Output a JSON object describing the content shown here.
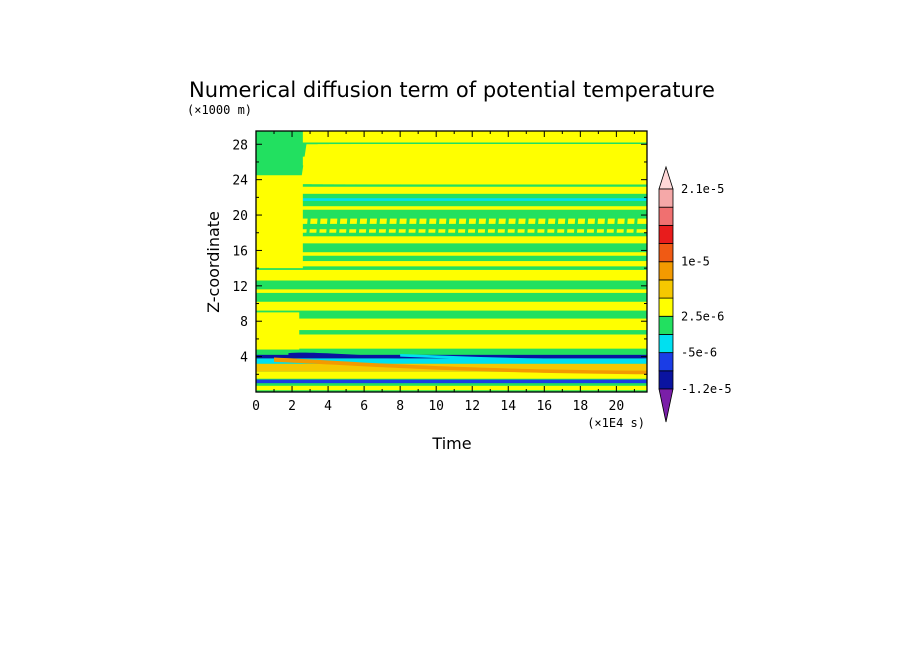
{
  "chart_data": {
    "type": "heatmap",
    "title": "Numerical diffusion term of potential temperature",
    "xlabel": "Time",
    "ylabel": "Z-coordinate",
    "x_units": "(×1E4 s)",
    "y_units": "(×1000 m)",
    "xlim": [
      0,
      21.7
    ],
    "ylim": [
      0,
      29.5
    ],
    "x_ticks": [
      0,
      2,
      4,
      6,
      8,
      10,
      12,
      14,
      16,
      18,
      20
    ],
    "y_ticks": [
      4,
      8,
      12,
      16,
      20,
      24,
      28
    ],
    "colorbar": {
      "labels": [
        {
          "text": "2.1e-5",
          "level": 11
        },
        {
          "text": "1e-5",
          "level": 7
        },
        {
          "text": "2.5e-6",
          "level": 4
        },
        {
          "text": "-5e-6",
          "level": 2
        },
        {
          "text": "-1.2e-5",
          "level": 0
        }
      ],
      "colors": [
        "#7a1fa8",
        "#0a13a0",
        "#1a3de6",
        "#00e0f0",
        "#22e060",
        "#ffff00",
        "#f5c800",
        "#f39a00",
        "#f05a14",
        "#e81c1c",
        "#f07070",
        "#f5a8a8",
        "#ffd8d8"
      ],
      "extend": "both"
    },
    "field_classes": {
      "background": "#22e060",
      "positive_band": "#ffff00",
      "strong_positive": "#f39a00",
      "negative_layer": "#0a13a0",
      "cyan_layer": "#00e0f0"
    },
    "bands": [
      {
        "z0": 0.2,
        "z1": 0.7,
        "color": "#ffff00"
      },
      {
        "z0": 1.0,
        "z1": 1.4,
        "color": "#1a3de6"
      },
      {
        "z0": 1.5,
        "z1": 2.3,
        "color": "#ffff00"
      },
      {
        "z0": 2.3,
        "z1": 3.2,
        "color": "#f5c800"
      },
      {
        "z0": 3.2,
        "z1": 3.8,
        "color": "#00e0f0"
      },
      {
        "z0": 3.8,
        "z1": 4.2,
        "color": "#0a13a0"
      },
      {
        "z0": 4.9,
        "z1": 6.5,
        "color": "#ffff00"
      },
      {
        "z0": 7.0,
        "z1": 8.3,
        "color": "#ffff00"
      },
      {
        "z0": 9.2,
        "z1": 10.2,
        "color": "#ffff00"
      },
      {
        "z0": 11.2,
        "z1": 11.6,
        "color": "#ffff00"
      },
      {
        "z0": 12.6,
        "z1": 13.8,
        "color": "#ffff00"
      },
      {
        "z0": 14.2,
        "z1": 14.8,
        "color": "#ffff00"
      },
      {
        "z0": 15.4,
        "z1": 15.8,
        "color": "#ffff00"
      },
      {
        "z0": 16.8,
        "z1": 17.6,
        "color": "#ffff00"
      },
      {
        "z0": 18.0,
        "z1": 18.4,
        "color": "#ffff00"
      },
      {
        "z0": 19.0,
        "z1": 19.6,
        "color": "#ffff00"
      },
      {
        "z0": 20.6,
        "z1": 21.0,
        "color": "#ffff00"
      },
      {
        "z0": 21.6,
        "z1": 21.9,
        "color": "#00e0f0"
      },
      {
        "z0": 22.4,
        "z1": 23.2,
        "color": "#ffff00"
      },
      {
        "z0": 25.6,
        "z1": 26.6,
        "color": "#ffff00"
      },
      {
        "z0": 28.2,
        "z1": 29.5,
        "color": "#ffff00"
      }
    ]
  }
}
